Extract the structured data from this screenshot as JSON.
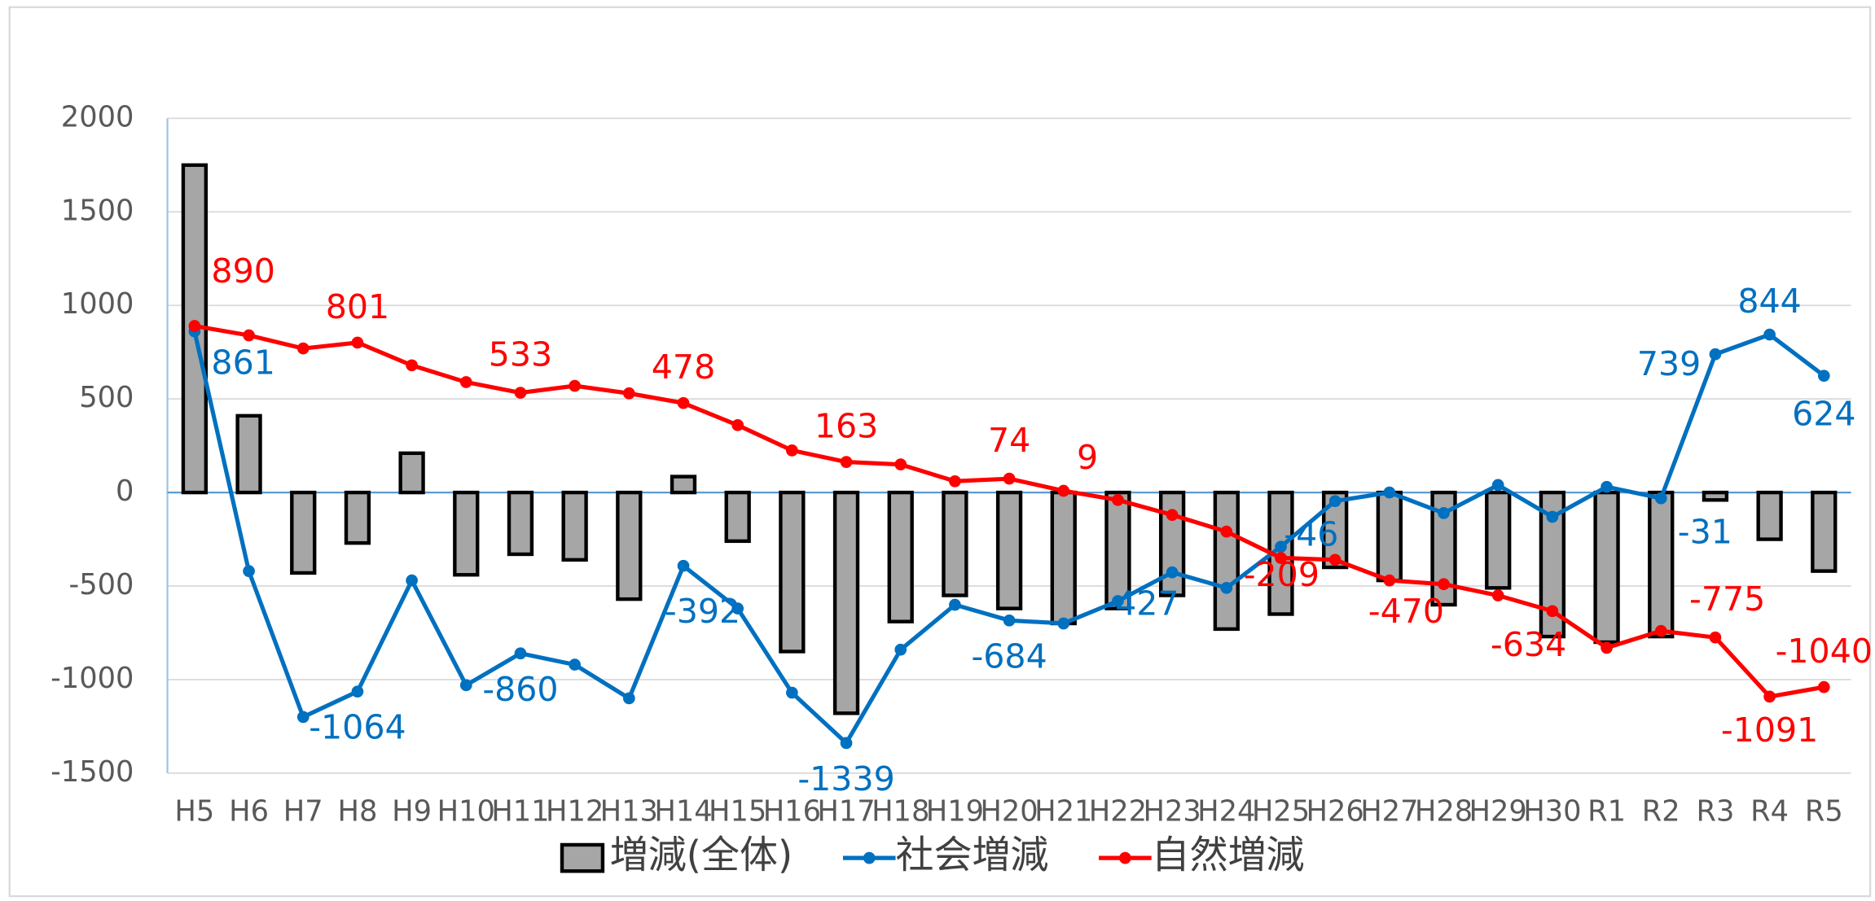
{
  "chart_data": {
    "type": "bar-line",
    "categories": [
      "H5",
      "H6",
      "H7",
      "H8",
      "H9",
      "H10",
      "H11",
      "H12",
      "H13",
      "H14",
      "H15",
      "H16",
      "H17",
      "H18",
      "H19",
      "H20",
      "H21",
      "H22",
      "H23",
      "H24",
      "H25",
      "H26",
      "H27",
      "H28",
      "H29",
      "H30",
      "R1",
      "R2",
      "R3",
      "R4",
      "R5"
    ],
    "ylim": [
      -1500,
      2000
    ],
    "yticks": [
      -1500,
      -1000,
      -500,
      0,
      500,
      1000,
      1500,
      2000
    ],
    "grid": true,
    "legend": "bottom",
    "series": [
      {
        "name": "増減(全体)",
        "type": "bar",
        "color": "#a6a6a6",
        "values": [
          1750,
          410,
          -430,
          -270,
          210,
          -440,
          -330,
          -360,
          -570,
          85,
          -260,
          -850,
          -1180,
          -690,
          -550,
          -620,
          -700,
          -620,
          -550,
          -730,
          -650,
          -400,
          -470,
          -600,
          -510,
          -770,
          -800,
          -770,
          -40,
          -250,
          -420
        ]
      },
      {
        "name": "社会増減",
        "type": "line",
        "color": "#0070c0",
        "values": [
          861,
          -420,
          -1200,
          -1064,
          -470,
          -1030,
          -860,
          -920,
          -1100,
          -392,
          -620,
          -1070,
          -1339,
          -840,
          -600,
          -684,
          -700,
          -580,
          -427,
          -510,
          -290,
          -46,
          0,
          -110,
          40,
          -130,
          30,
          -31,
          739,
          844,
          624
        ],
        "value_labels": [
          "861",
          null,
          null,
          "-1064",
          null,
          null,
          "-860",
          null,
          null,
          "-392",
          null,
          null,
          "-1339",
          null,
          null,
          "-684",
          null,
          null,
          "-427",
          null,
          null,
          "-46",
          null,
          null,
          null,
          null,
          null,
          "-31",
          "739",
          "844",
          "624"
        ]
      },
      {
        "name": "自然増減",
        "type": "line",
        "color": "#ff0000",
        "values": [
          890,
          840,
          770,
          801,
          680,
          590,
          533,
          570,
          530,
          478,
          360,
          225,
          163,
          150,
          60,
          74,
          9,
          -40,
          -120,
          -209,
          -350,
          -360,
          -470,
          -490,
          -550,
          -634,
          -830,
          -740,
          -775,
          -1091,
          -1040
        ],
        "value_labels": [
          "890",
          null,
          null,
          "801",
          null,
          null,
          "533",
          null,
          null,
          "478",
          null,
          null,
          "163",
          null,
          null,
          "74",
          "9",
          null,
          null,
          "-209",
          null,
          null,
          "-470",
          null,
          null,
          "-634",
          null,
          null,
          "-775",
          "-1091",
          "-1040"
        ]
      }
    ]
  }
}
